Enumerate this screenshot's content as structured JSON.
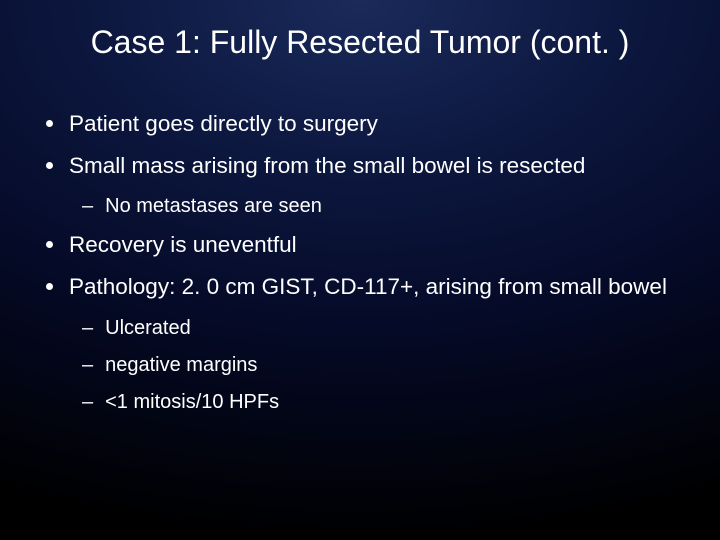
{
  "slide": {
    "title": "Case 1: Fully Resected Tumor (cont. )",
    "background": {
      "gradient_center": "#1a2a5a",
      "gradient_mid": "#0d1840",
      "gradient_edge": "#000000"
    },
    "title_fontsize": 32,
    "body_fontsize_l1": 22.5,
    "body_fontsize_l2": 20,
    "text_color": "#ffffff",
    "bullets": {
      "b1": "Patient goes directly to surgery",
      "b2": "Small mass arising from the small bowel is resected",
      "b2_sub1": "No metastases are seen",
      "b3": "Recovery is uneventful",
      "b4": "Pathology: 2. 0 cm GIST, CD-117+, arising from small bowel",
      "b4_sub1": "Ulcerated",
      "b4_sub2": "negative margins",
      "b4_sub3": "<1 mitosis/10 HPFs"
    }
  }
}
